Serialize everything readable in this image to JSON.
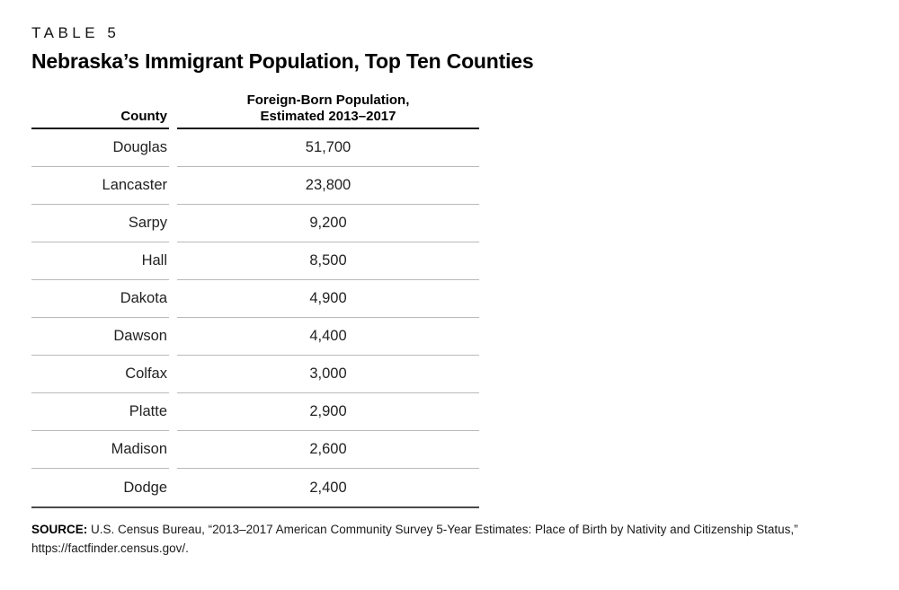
{
  "page": {
    "label": "TABLE 5",
    "title": "Nebraska’s Immigrant Population, Top Ten Counties"
  },
  "table": {
    "col_county_header": "County",
    "col_population_header_line1": "Foreign-Born Population,",
    "col_population_header_line2": "Estimated 2013–2017",
    "rows": [
      {
        "county": "Douglas",
        "population": "51,700"
      },
      {
        "county": "Lancaster",
        "population": "23,800"
      },
      {
        "county": "Sarpy",
        "population": "9,200"
      },
      {
        "county": "Hall",
        "population": "8,500"
      },
      {
        "county": "Dakota",
        "population": "4,900"
      },
      {
        "county": "Dawson",
        "population": "4,400"
      },
      {
        "county": "Colfax",
        "population": "3,000"
      },
      {
        "county": "Platte",
        "population": "2,900"
      },
      {
        "county": "Madison",
        "population": "2,600"
      },
      {
        "county": "Dodge",
        "population": "2,400"
      }
    ]
  },
  "source": {
    "label": "SOURCE:",
    "text": "U.S. Census Bureau, “2013–2017 American Community Survey 5-Year Estimates: Place of Birth by Nativity and Citizenship Status,”",
    "url": "https://factfinder.census.gov/."
  },
  "chart_data": {
    "type": "table",
    "title": "Nebraska’s Immigrant Population, Top Ten Counties",
    "columns": [
      "County",
      "Foreign-Born Population, Estimated 2013–2017"
    ],
    "rows": [
      [
        "Douglas",
        51700
      ],
      [
        "Lancaster",
        23800
      ],
      [
        "Sarpy",
        9200
      ],
      [
        "Hall",
        8500
      ],
      [
        "Dakota",
        4900
      ],
      [
        "Dawson",
        4400
      ],
      [
        "Colfax",
        3000
      ],
      [
        "Platte",
        2900
      ],
      [
        "Madison",
        2600
      ],
      [
        "Dodge",
        2400
      ]
    ]
  }
}
